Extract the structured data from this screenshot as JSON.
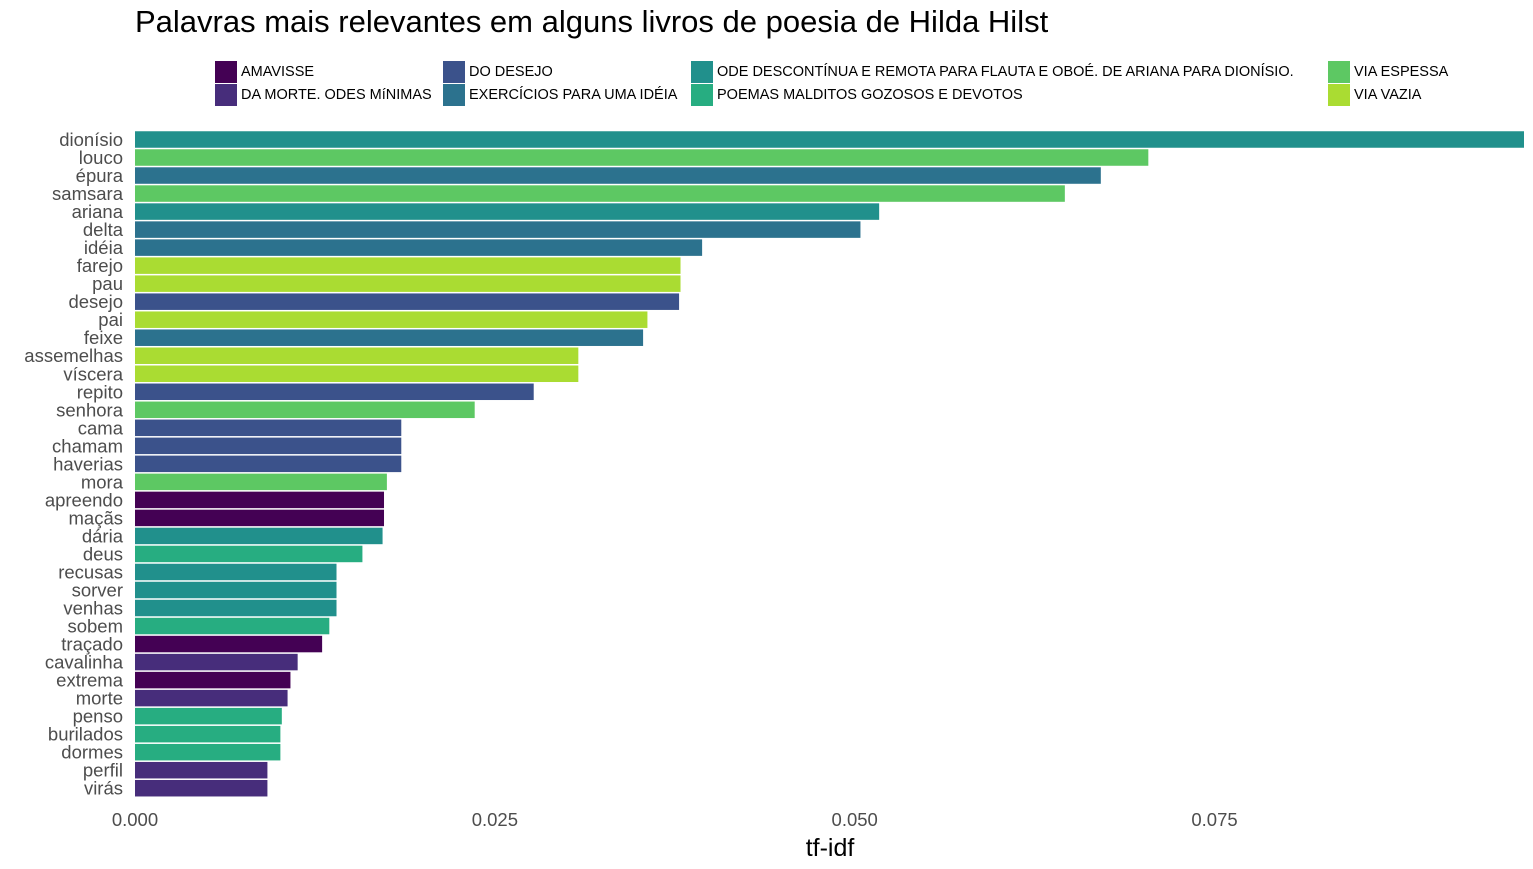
{
  "chart_data": {
    "type": "bar",
    "orientation": "horizontal",
    "title": "Palavras mais relevantes em alguns livros de poesia de Hilda Hilst",
    "xlabel": "tf-idf",
    "ylabel": "",
    "xlim": [
      0,
      0.0965
    ],
    "x_ticks": [
      "0.000",
      "0.025",
      "0.050",
      "0.075"
    ],
    "grid": false,
    "legend_position": "top",
    "legend": [
      {
        "name": "AMAVISSE",
        "color": "#440154"
      },
      {
        "name": "DA MORTE. ODES MíNIMAS",
        "color": "#472D7B"
      },
      {
        "name": "DO DESEJO",
        "color": "#3B528B"
      },
      {
        "name": "EXERCÍCIOS PARA UMA IDÉIA",
        "color": "#2C728E"
      },
      {
        "name": "ODE DESCONTÍNUA E REMOTA PARA FLAUTA E OBOÉ. DE ARIANA PARA DIONÍSIO.",
        "color": "#21908C"
      },
      {
        "name": "POEMAS MALDITOS GOZOSOS E DEVOTOS",
        "color": "#27AD81"
      },
      {
        "name": "VIA ESPESSA",
        "color": "#5DC863"
      },
      {
        "name": "VIA VAZIA",
        "color": "#AADC32"
      }
    ],
    "bars": [
      {
        "word": "dionísio",
        "value": 0.0965,
        "book": 4
      },
      {
        "word": "louco",
        "value": 0.0704,
        "book": 6
      },
      {
        "word": "épura",
        "value": 0.0671,
        "book": 3
      },
      {
        "word": "samsara",
        "value": 0.0646,
        "book": 6
      },
      {
        "word": "ariana",
        "value": 0.0517,
        "book": 4
      },
      {
        "word": "delta",
        "value": 0.0504,
        "book": 3
      },
      {
        "word": "idéia",
        "value": 0.0394,
        "book": 3
      },
      {
        "word": "farejo",
        "value": 0.0379,
        "book": 7
      },
      {
        "word": "pau",
        "value": 0.0379,
        "book": 7
      },
      {
        "word": "desejo",
        "value": 0.0378,
        "book": 2
      },
      {
        "word": "pai",
        "value": 0.0356,
        "book": 7
      },
      {
        "word": "feixe",
        "value": 0.0353,
        "book": 3
      },
      {
        "word": "assemelhas",
        "value": 0.0308,
        "book": 7
      },
      {
        "word": "víscera",
        "value": 0.0308,
        "book": 7
      },
      {
        "word": "repito",
        "value": 0.0277,
        "book": 2
      },
      {
        "word": "senhora",
        "value": 0.0236,
        "book": 6
      },
      {
        "word": "cama",
        "value": 0.0185,
        "book": 2
      },
      {
        "word": "chamam",
        "value": 0.0185,
        "book": 2
      },
      {
        "word": "haverias",
        "value": 0.0185,
        "book": 2
      },
      {
        "word": "mora",
        "value": 0.0175,
        "book": 6
      },
      {
        "word": "apreendo",
        "value": 0.0173,
        "book": 0
      },
      {
        "word": "maçãs",
        "value": 0.0173,
        "book": 0
      },
      {
        "word": "dária",
        "value": 0.0172,
        "book": 4
      },
      {
        "word": "deus",
        "value": 0.0158,
        "book": 5
      },
      {
        "word": "recusas",
        "value": 0.014,
        "book": 4
      },
      {
        "word": "sorver",
        "value": 0.014,
        "book": 4
      },
      {
        "word": "venhas",
        "value": 0.014,
        "book": 4
      },
      {
        "word": "sobem",
        "value": 0.0135,
        "book": 5
      },
      {
        "word": "traçado",
        "value": 0.013,
        "book": 0
      },
      {
        "word": "cavalinha",
        "value": 0.0113,
        "book": 1
      },
      {
        "word": "extrema",
        "value": 0.0108,
        "book": 0
      },
      {
        "word": "morte",
        "value": 0.0106,
        "book": 1
      },
      {
        "word": "penso",
        "value": 0.0102,
        "book": 5
      },
      {
        "word": "burilados",
        "value": 0.0101,
        "book": 5
      },
      {
        "word": "dormes",
        "value": 0.0101,
        "book": 5
      },
      {
        "word": "perfil",
        "value": 0.0092,
        "book": 1
      },
      {
        "word": "virás",
        "value": 0.0092,
        "book": 1
      }
    ]
  }
}
